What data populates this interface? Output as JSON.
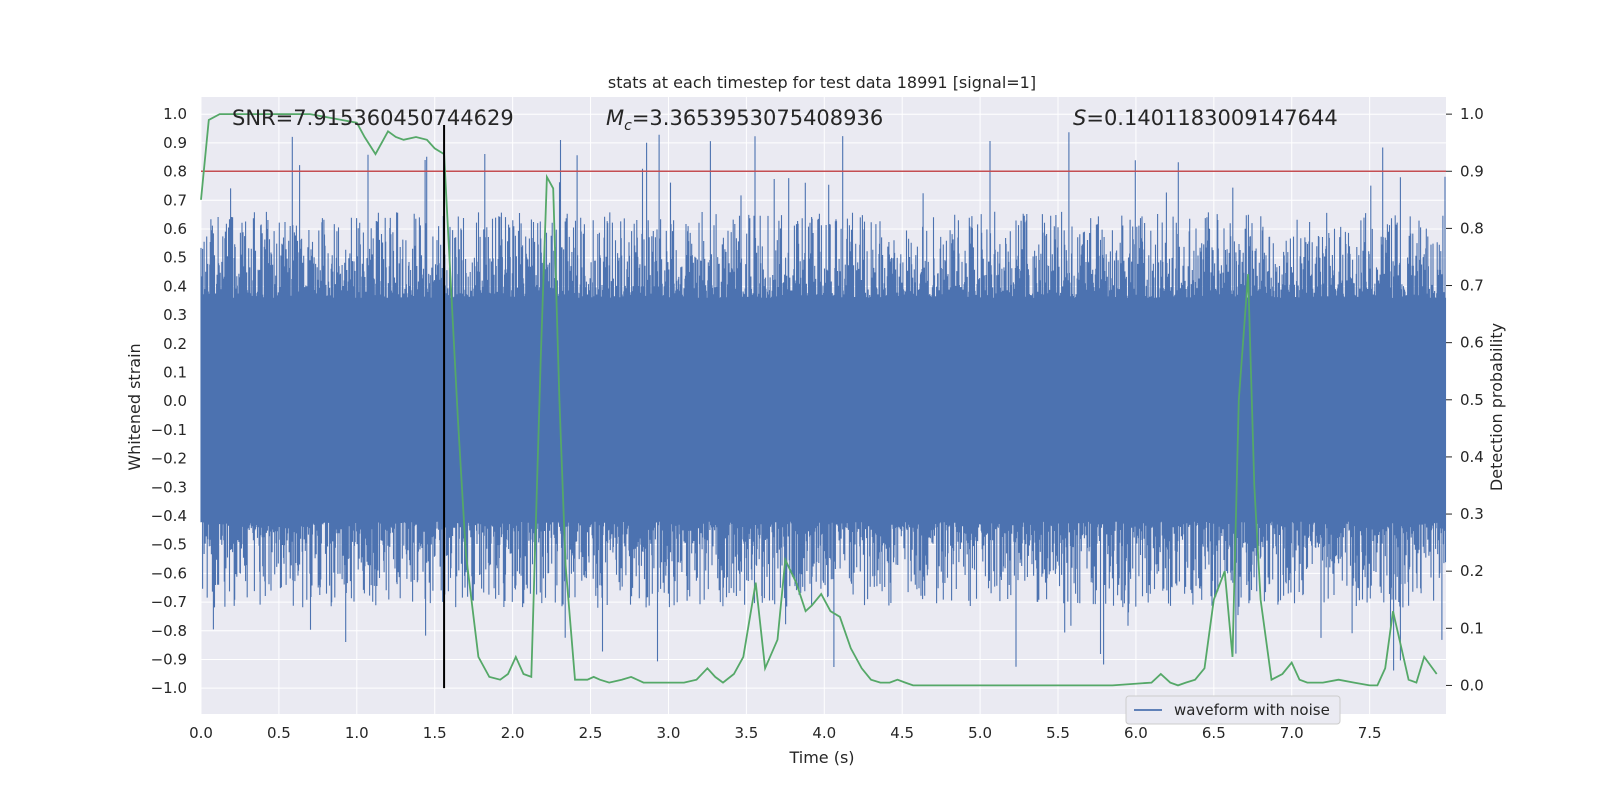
{
  "chart_data": {
    "type": "line",
    "title": "stats at each timestep for test data 18991 [signal=1]",
    "xlabel": "Time (s)",
    "ylabel_left": "Whitened strain",
    "ylabel_right": "Detection probability",
    "xlim": [
      0.0,
      7.99
    ],
    "ylim_left": [
      -1.09,
      1.06
    ],
    "ylim_right": [
      -0.05,
      1.03
    ],
    "x_ticks": [
      "0.0",
      "0.5",
      "1.0",
      "1.5",
      "2.0",
      "2.5",
      "3.0",
      "3.5",
      "4.0",
      "4.5",
      "5.0",
      "5.5",
      "6.0",
      "6.5",
      "7.0",
      "7.5"
    ],
    "y_ticks_left": [
      "1.0",
      "0.9",
      "0.8",
      "0.7",
      "0.6",
      "0.5",
      "0.4",
      "0.3",
      "0.2",
      "0.1",
      "0.0",
      "−0.1",
      "−0.2",
      "−0.3",
      "−0.4",
      "−0.5",
      "−0.6",
      "−0.7",
      "−0.8",
      "−0.9",
      "−1.0"
    ],
    "y_ticks_right": [
      "1.0",
      "0.9",
      "0.8",
      "0.7",
      "0.6",
      "0.5",
      "0.4",
      "0.3",
      "0.2",
      "0.1",
      "0.0"
    ],
    "annotations": {
      "snr": "SNR=7.915360450744629",
      "mc_symbol": "M",
      "mc_sub": "c",
      "mc_value": "=3.3653953075408936",
      "s_symbol": "S",
      "s_value": "=0.1401183009147644"
    },
    "threshold": {
      "value": 0.9,
      "axis": "right",
      "color": "#c44e52"
    },
    "marker_line": {
      "x": 1.56,
      "color": "#000000"
    },
    "legend": {
      "entries": [
        "waveform with noise"
      ],
      "position": "lower-right"
    },
    "colors": {
      "waveform": "#4c72b0",
      "probability": "#55a868",
      "background": "#eaeaf2",
      "grid": "#ffffff"
    },
    "series": [
      {
        "name": "waveform with noise",
        "axis": "left",
        "note": "dense whitened strain noise, mostly within about -0.42..0.36 with spikes up to about +/-0.95"
      },
      {
        "name": "detection probability",
        "axis": "right",
        "x": [
          0.0,
          0.05,
          0.12,
          0.2,
          0.3,
          0.5,
          0.7,
          0.8,
          0.9,
          1.0,
          1.05,
          1.12,
          1.2,
          1.25,
          1.3,
          1.38,
          1.45,
          1.5,
          1.56,
          1.6,
          1.65,
          1.7,
          1.78,
          1.85,
          1.92,
          1.97,
          2.02,
          2.07,
          2.12,
          2.18,
          2.22,
          2.26,
          2.3,
          2.34,
          2.4,
          2.48,
          2.52,
          2.56,
          2.62,
          2.7,
          2.76,
          2.84,
          2.92,
          3.0,
          3.1,
          3.18,
          3.25,
          3.3,
          3.35,
          3.42,
          3.48,
          3.56,
          3.62,
          3.7,
          3.75,
          3.82,
          3.88,
          3.92,
          3.98,
          4.04,
          4.1,
          4.17,
          4.24,
          4.3,
          4.36,
          4.42,
          4.47,
          4.52,
          4.57,
          4.62,
          4.7,
          4.8,
          5.0,
          5.3,
          5.6,
          5.85,
          6.1,
          6.16,
          6.22,
          6.27,
          6.32,
          6.38,
          6.44,
          6.5,
          6.57,
          6.62,
          6.66,
          6.72,
          6.76,
          6.8,
          6.87,
          6.94,
          7.0,
          7.05,
          7.1,
          7.2,
          7.3,
          7.4,
          7.5,
          7.55,
          7.6,
          7.65,
          7.7,
          7.75,
          7.8,
          7.85,
          7.93
        ],
        "y": [
          0.85,
          0.99,
          1.0,
          1.0,
          1.0,
          1.0,
          1.0,
          0.995,
          0.99,
          0.985,
          0.96,
          0.93,
          0.97,
          0.96,
          0.955,
          0.96,
          0.955,
          0.94,
          0.93,
          0.72,
          0.46,
          0.23,
          0.05,
          0.015,
          0.01,
          0.02,
          0.05,
          0.02,
          0.015,
          0.57,
          0.89,
          0.87,
          0.5,
          0.21,
          0.01,
          0.01,
          0.015,
          0.01,
          0.005,
          0.01,
          0.015,
          0.005,
          0.005,
          0.005,
          0.005,
          0.01,
          0.03,
          0.015,
          0.005,
          0.02,
          0.05,
          0.18,
          0.03,
          0.08,
          0.22,
          0.18,
          0.13,
          0.14,
          0.16,
          0.13,
          0.12,
          0.065,
          0.03,
          0.01,
          0.005,
          0.005,
          0.01,
          0.005,
          0.0,
          0.0,
          0.0,
          0.0,
          0.0,
          0.0,
          0.0,
          0.0,
          0.005,
          0.02,
          0.005,
          0.0,
          0.005,
          0.01,
          0.03,
          0.15,
          0.2,
          0.05,
          0.5,
          0.72,
          0.35,
          0.15,
          0.01,
          0.02,
          0.04,
          0.01,
          0.005,
          0.005,
          0.01,
          0.005,
          0.0,
          0.0,
          0.03,
          0.13,
          0.07,
          0.01,
          0.005,
          0.05,
          0.02
        ]
      }
    ]
  }
}
